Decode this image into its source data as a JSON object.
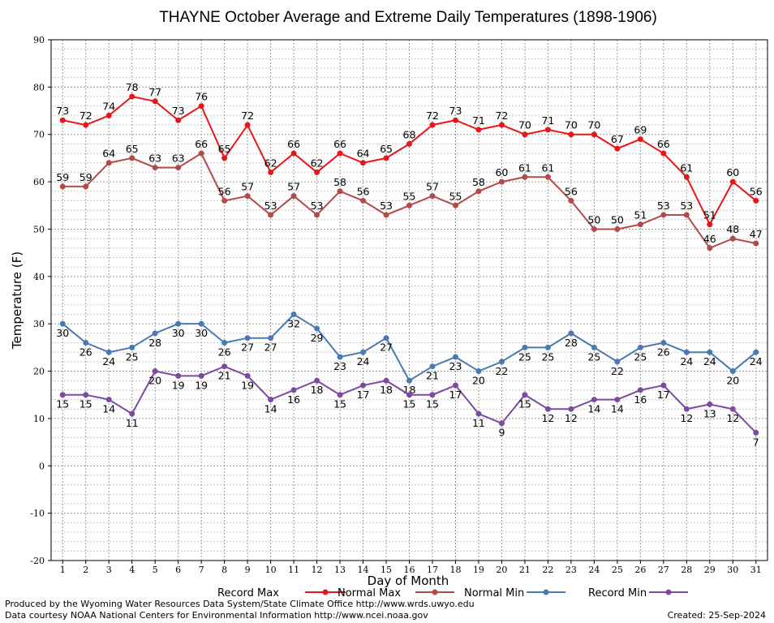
{
  "chart_data": {
    "type": "line",
    "title": "THAYNE October Average and Extreme Daily Temperatures (1898-1906)",
    "xlabel": "Day of Month",
    "ylabel": "Temperature (F)",
    "ylim": [
      -20,
      90
    ],
    "yticks": [
      -20,
      -10,
      0,
      10,
      20,
      30,
      40,
      50,
      60,
      70,
      80,
      90
    ],
    "grid": true,
    "legend_position": "bottom",
    "x": [
      1,
      2,
      3,
      4,
      5,
      6,
      7,
      8,
      9,
      10,
      11,
      12,
      13,
      14,
      15,
      16,
      17,
      18,
      19,
      20,
      21,
      22,
      23,
      24,
      25,
      26,
      27,
      28,
      29,
      30,
      31
    ],
    "series": [
      {
        "name": "Record Max",
        "color": "#e8161b",
        "label_position": "above",
        "values": [
          73,
          72,
          74,
          78,
          77,
          73,
          76,
          65,
          72,
          62,
          66,
          62,
          66,
          64,
          65,
          68,
          72,
          73,
          71,
          72,
          70,
          71,
          70,
          70,
          67,
          69,
          66,
          61,
          51,
          60,
          56
        ]
      },
      {
        "name": "Normal Max",
        "color": "#b24a4a",
        "label_position": "above",
        "values": [
          59,
          59,
          64,
          65,
          63,
          63,
          66,
          56,
          57,
          53,
          57,
          53,
          58,
          56,
          53,
          55,
          57,
          55,
          58,
          60,
          61,
          61,
          56,
          50,
          50,
          51,
          53,
          53,
          46,
          48,
          47
        ]
      },
      {
        "name": "Normal Min",
        "color": "#4a7ab4",
        "label_position": "below",
        "values": [
          30,
          26,
          24,
          25,
          28,
          30,
          30,
          26,
          27,
          27,
          32,
          29,
          23,
          24,
          27,
          18,
          21,
          23,
          20,
          22,
          25,
          25,
          28,
          25,
          22,
          25,
          26,
          24,
          24,
          20,
          24
        ]
      },
      {
        "name": "Record Min",
        "color": "#7d4b9e",
        "label_position": "below",
        "values": [
          15,
          15,
          14,
          11,
          20,
          19,
          19,
          21,
          19,
          14,
          16,
          18,
          15,
          17,
          18,
          15,
          15,
          17,
          11,
          9,
          15,
          12,
          12,
          14,
          14,
          16,
          17,
          12,
          13,
          12,
          7
        ]
      }
    ]
  },
  "footer": {
    "credit_line1": "Produced by the Wyoming Water Resources Data System/State Climate Office http://www.wrds.uwyo.edu",
    "credit_line2": "Data courtesy NOAA National Centers for Environmental Information http://www.ncei.noaa.gov",
    "created": "Created:  25-Sep-2024"
  }
}
